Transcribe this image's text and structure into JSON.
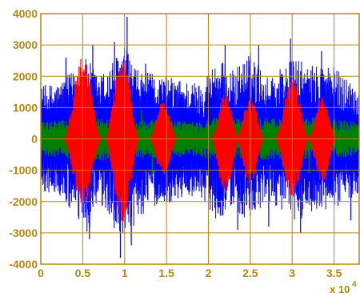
{
  "chart_data": {
    "type": "line",
    "title": "",
    "xlabel": "",
    "ylabel": "",
    "x_exponent_label": "x 10",
    "x_exponent_power": "4",
    "xlim": [
      0,
      3.8
    ],
    "ylim": [
      -4000,
      4000
    ],
    "grid": true,
    "x_ticks": [
      {
        "value": 0,
        "label": "0"
      },
      {
        "value": 0.5,
        "label": "0.5"
      },
      {
        "value": 1,
        "label": "1"
      },
      {
        "value": 1.5,
        "label": "1.5"
      },
      {
        "value": 2,
        "label": "2"
      },
      {
        "value": 2.5,
        "label": "2.5"
      },
      {
        "value": 3,
        "label": "3"
      },
      {
        "value": 3.5,
        "label": "3.5"
      }
    ],
    "y_ticks": [
      {
        "value": 4000,
        "label": "4000"
      },
      {
        "value": 3000,
        "label": "3000"
      },
      {
        "value": 2000,
        "label": "2000"
      },
      {
        "value": 1000,
        "label": "1000"
      },
      {
        "value": 0,
        "label": "0"
      },
      {
        "value": -1000,
        "label": "-1000"
      },
      {
        "value": -2000,
        "label": "-2000"
      },
      {
        "value": -3000,
        "label": "-3000"
      },
      {
        "value": -4000,
        "label": "-4000"
      }
    ],
    "colors": {
      "axis": "#b8860b",
      "tick_text": "#b8860b",
      "grid": "#b8860b"
    },
    "series": [
      {
        "color": "#0000ff",
        "envelope": {
          "x": [
            0,
            0.2,
            0.4,
            0.55,
            0.7,
            0.85,
            1.0,
            1.15,
            1.3,
            1.5,
            1.7,
            1.9,
            2.1,
            2.3,
            2.5,
            2.7,
            2.9,
            3.05,
            3.2,
            3.4,
            3.6,
            3.8
          ],
          "upper": [
            1700,
            1800,
            2200,
            2600,
            2000,
            2500,
            3000,
            2200,
            2100,
            2000,
            1900,
            1800,
            2600,
            2200,
            2800,
            2000,
            2400,
            2600,
            2300,
            2500,
            2100,
            1700
          ],
          "lower": [
            -1700,
            -1800,
            -2500,
            -3100,
            -2200,
            -2700,
            -3600,
            -2600,
            -2200,
            -2100,
            -1900,
            -1800,
            -2600,
            -2200,
            -2800,
            -2000,
            -2300,
            -2800,
            -2300,
            -2400,
            -2100,
            -1700
          ]
        },
        "spikes": [
          {
            "x": 0.3,
            "y": 2600
          },
          {
            "x": 0.58,
            "y": -3200
          },
          {
            "x": 0.62,
            "y": 3000
          },
          {
            "x": 0.88,
            "y": 3100
          },
          {
            "x": 0.95,
            "y": -3800
          },
          {
            "x": 1.03,
            "y": 3900
          },
          {
            "x": 1.08,
            "y": -3400
          },
          {
            "x": 1.25,
            "y": 2400
          },
          {
            "x": 2.2,
            "y": 3000
          },
          {
            "x": 2.35,
            "y": -2900
          },
          {
            "x": 2.6,
            "y": 3000
          },
          {
            "x": 2.72,
            "y": -2800
          },
          {
            "x": 2.98,
            "y": 3200
          },
          {
            "x": 3.1,
            "y": -3000
          },
          {
            "x": 3.35,
            "y": 2800
          },
          {
            "x": 3.7,
            "y": -2600
          }
        ]
      },
      {
        "color": "#008000",
        "envelope": {
          "x": [
            0,
            0.3,
            0.6,
            0.9,
            1.2,
            1.5,
            1.8,
            2.1,
            2.4,
            2.7,
            3.0,
            3.3,
            3.6,
            3.8
          ],
          "upper": [
            550,
            600,
            700,
            650,
            600,
            650,
            550,
            700,
            650,
            700,
            650,
            700,
            600,
            550
          ],
          "lower": [
            -550,
            -600,
            -750,
            -700,
            -650,
            -600,
            -550,
            -700,
            -650,
            -700,
            -700,
            -650,
            -600,
            -550
          ]
        },
        "spikes": [
          {
            "x": 0.62,
            "y": 1200
          },
          {
            "x": 0.98,
            "y": -1400
          },
          {
            "x": 1.2,
            "y": 900
          },
          {
            "x": 1.33,
            "y": -1200
          },
          {
            "x": 2.5,
            "y": 1000
          },
          {
            "x": 3.2,
            "y": -1100
          }
        ]
      },
      {
        "color": "#ff0000",
        "bursts": [
          {
            "center": 0.5,
            "width": 0.22,
            "amp_upper": 2600,
            "amp_lower": -2200
          },
          {
            "center": 0.97,
            "width": 0.2,
            "amp_upper": 2600,
            "amp_lower": -2700
          },
          {
            "center": 1.46,
            "width": 0.16,
            "amp_upper": 1200,
            "amp_lower": -1200
          },
          {
            "center": 2.2,
            "width": 0.16,
            "amp_upper": 1500,
            "amp_lower": -1800
          },
          {
            "center": 2.5,
            "width": 0.16,
            "amp_upper": 1400,
            "amp_lower": -1500
          },
          {
            "center": 3.0,
            "width": 0.2,
            "amp_upper": 1900,
            "amp_lower": -1900
          },
          {
            "center": 3.36,
            "width": 0.16,
            "amp_upper": 1400,
            "amp_lower": -1400
          }
        ]
      }
    ]
  }
}
